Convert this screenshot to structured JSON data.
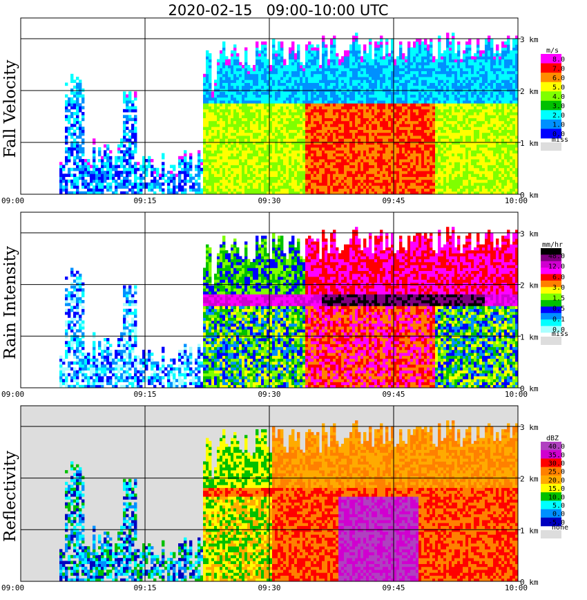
{
  "chart_data": {
    "type": "heatmap",
    "title": "2020-02-15   09:00-10:00 UTC",
    "x_ticks": [
      "09:00",
      "09:15",
      "09:30",
      "09:45",
      "10:00"
    ],
    "x_range_utc": [
      "09:00",
      "10:00"
    ],
    "height_ticks": [
      "0 km",
      "1 km",
      "2 km",
      "3 km"
    ],
    "height_range_km": [
      0,
      3.4
    ],
    "panels": [
      {
        "id": "fall-velocity",
        "ylabel": "Fall Velocity",
        "legend": {
          "unit": "m/s",
          "labels": [
            "8.0",
            "7.0",
            "6.0",
            "5.0",
            "4.0",
            "3.0",
            "2.0",
            "1.0",
            "0.0"
          ],
          "colors": [
            "#ff00ff",
            "#ff0000",
            "#ff8c00",
            "#ffff00",
            "#7fff00",
            "#00c000",
            "#00ffff",
            "#0090ff",
            "#0000ff"
          ],
          "missing_label": "miss",
          "missing_color": "#dddddd"
        },
        "background": "#ffffff"
      },
      {
        "id": "rain-intensity",
        "ylabel": "Rain Intensity",
        "legend": {
          "unit": "mm/hr",
          "labels": [
            "48.0",
            "12.0",
            "6.0",
            "3.0",
            "1.5",
            "0.5",
            "0.1",
            "0.0"
          ],
          "colors": [
            "#000000",
            "#800080",
            "#d000d0",
            "#ff00ff",
            "#ff0000",
            "#ff8000",
            "#ffff00",
            "#7fff00",
            "#00c000",
            "#0000ff",
            "#0090ff",
            "#00ffff",
            "#aaffff"
          ],
          "missing_label": "miss",
          "missing_color": "#dddddd"
        },
        "background": "#ffffff"
      },
      {
        "id": "reflectivity",
        "ylabel": "Reflectivity",
        "legend": {
          "unit": "dBZ",
          "labels": [
            "40.0",
            "35.0",
            "30.0",
            "25.0",
            "20.0",
            "15.0",
            "10.0",
            "5.0",
            "0.0",
            "-5.0"
          ],
          "colors": [
            "#b040c0",
            "#d000d0",
            "#ff0000",
            "#ff8000",
            "#ffaa00",
            "#ffff00",
            "#00c000",
            "#00ffff",
            "#0090ff",
            "#0000c0"
          ],
          "missing_label": "none",
          "missing_color": "#dddddd"
        },
        "background": "#dddddd"
      }
    ]
  }
}
